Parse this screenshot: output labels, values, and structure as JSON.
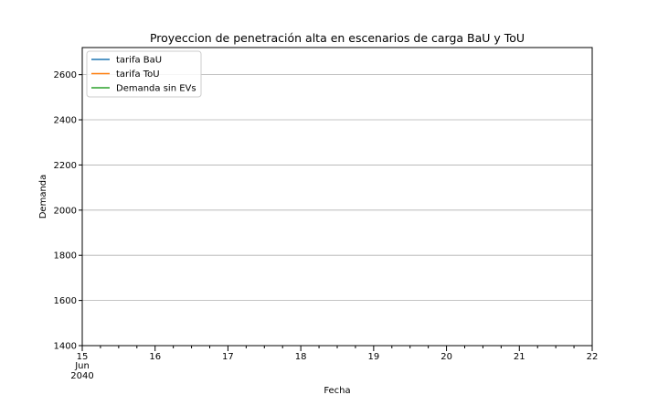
{
  "chart_data": {
    "type": "line",
    "title": "Proyeccion de penetración alta en escenarios de carga BaU y ToU",
    "xlabel": "Fecha",
    "ylabel": "Demanda",
    "x_start_label": {
      "day": "15",
      "month": "Jun",
      "year": "2040"
    },
    "x_ticks": [
      "15",
      "16",
      "17",
      "18",
      "19",
      "20",
      "21",
      "22"
    ],
    "xlim": [
      "2040-06-15",
      "2040-06-22"
    ],
    "ylim": [
      1400,
      2720
    ],
    "y_ticks": [
      1400,
      1600,
      1800,
      2000,
      2200,
      2400,
      2600
    ],
    "grid": "y",
    "legend_position": "top-left",
    "series": [
      {
        "name": "tarifa BaU",
        "color": "#1f77b4"
      },
      {
        "name": "tarifa ToU",
        "color": "#ff7f0e"
      },
      {
        "name": "Demanda sin EVs",
        "color": "#2ca02c"
      }
    ]
  }
}
